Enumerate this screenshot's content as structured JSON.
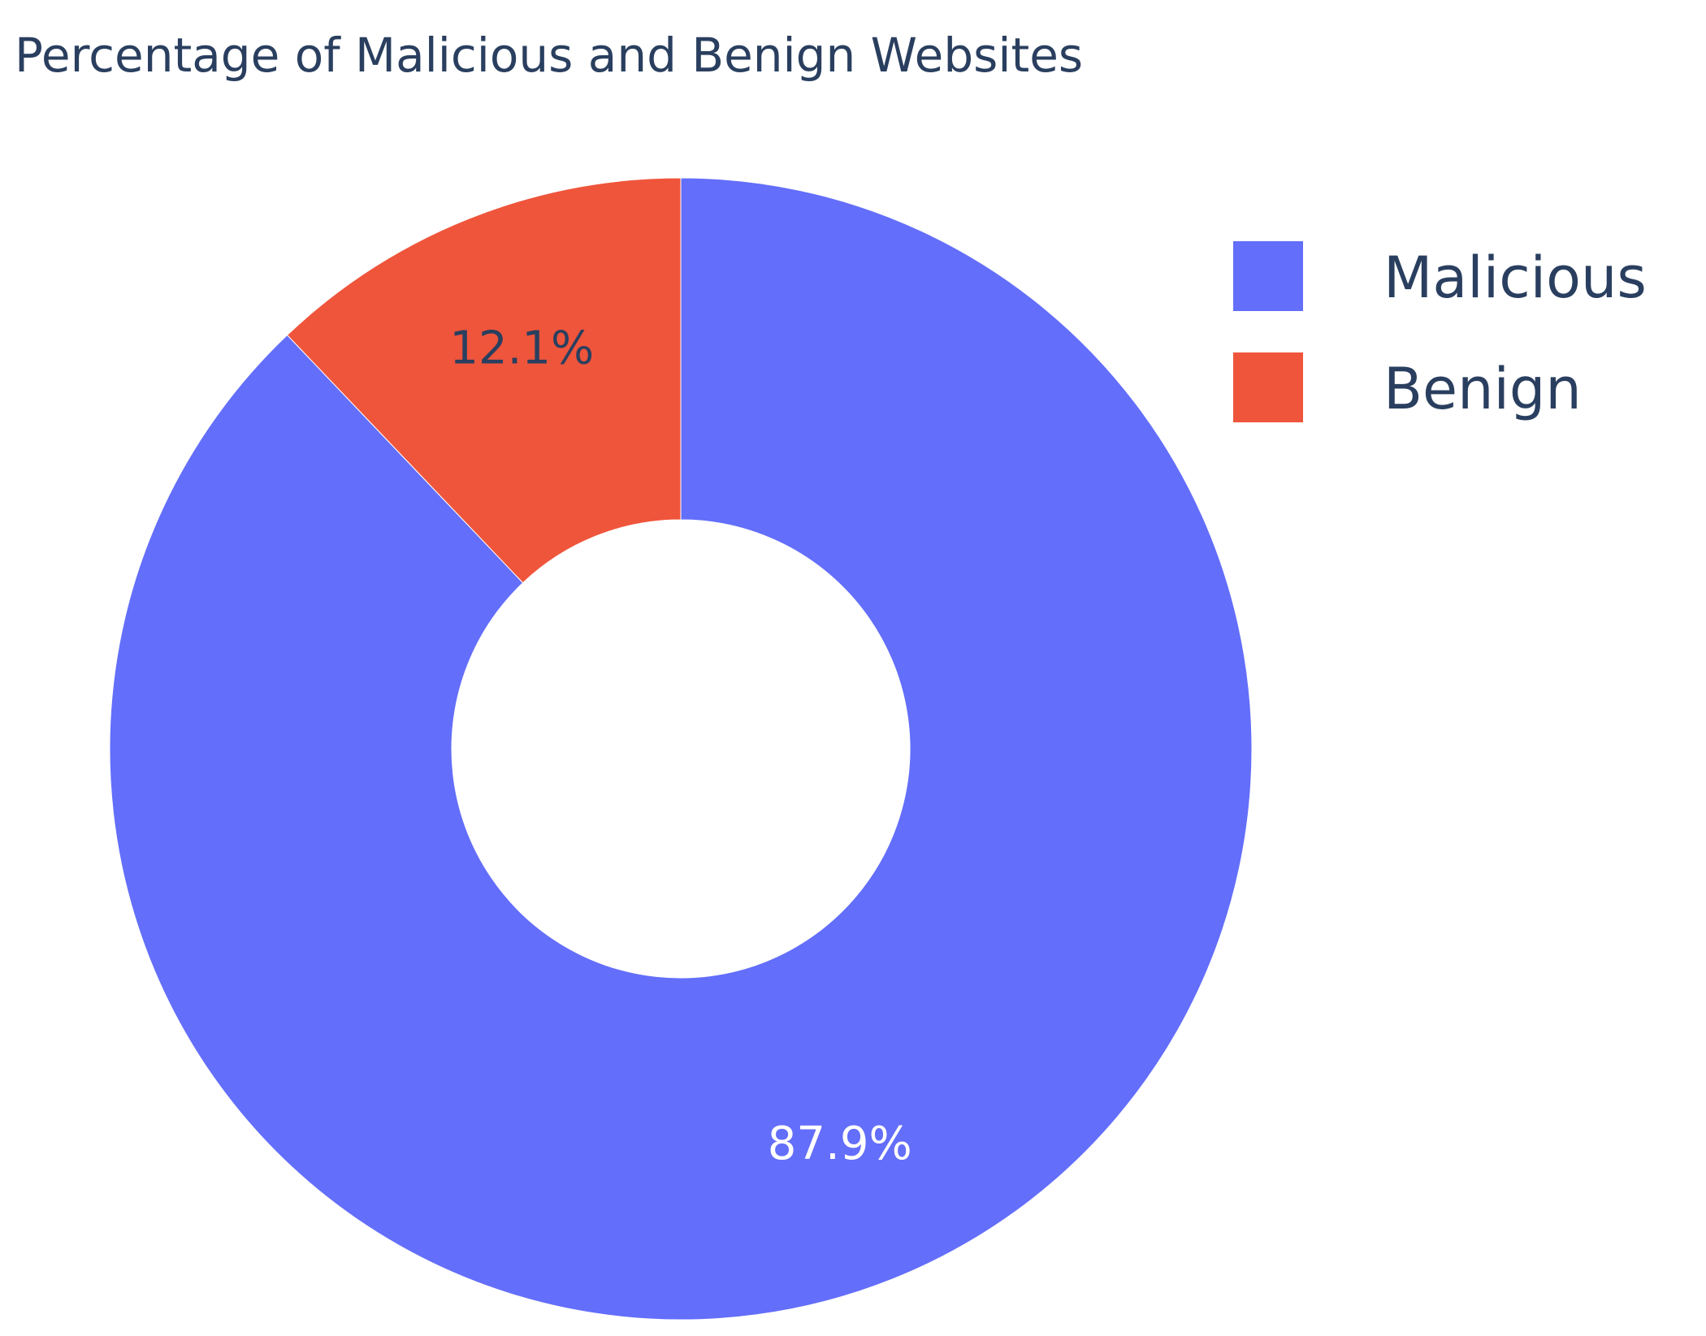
{
  "chart_data": {
    "type": "pie",
    "title": "Percentage of Malicious and Benign Websites",
    "hole": true,
    "slices": [
      {
        "label": "Malicious",
        "value": 87.9,
        "text": "87.9%",
        "color": "#636efa",
        "text_color": "#ffffff"
      },
      {
        "label": "Benign",
        "value": 12.1,
        "text": "12.1%",
        "color": "#ef553b",
        "text_color": "#2a3f5f"
      }
    ],
    "legend": {
      "placement": "top-right",
      "entries": [
        "Malicious",
        "Benign"
      ]
    },
    "direction": "clockwise",
    "start": "top"
  }
}
